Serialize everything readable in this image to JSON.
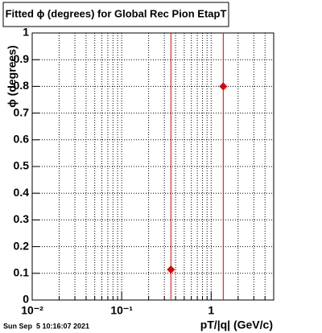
{
  "chart_data": {
    "type": "scatter",
    "title": "Fitted ϕ (degrees) for Global Rec Pion EtapT",
    "x_label": "pT/|q| (GeV/c)",
    "y_label": "ϕ (degrees)",
    "timestamp": "Sun Sep  5 10:16:07 2021",
    "x": [
      0.355,
      1.365
    ],
    "values": [
      0.114,
      0.8
    ],
    "color": "#e00000",
    "xscale": "log",
    "xlim": [
      0.01,
      5
    ],
    "ylim": [
      0,
      1
    ],
    "xticks": [
      {
        "value": 0.01,
        "label": "10⁻²"
      },
      {
        "value": 0.1,
        "label": "10⁻¹"
      },
      1
    ],
    "xminorticks": [
      0.02,
      0.03,
      0.04,
      0.05,
      0.06,
      0.07,
      0.08,
      0.09,
      0.2,
      0.3,
      0.4,
      0.5,
      0.6,
      0.7,
      0.8,
      0.9,
      2,
      3,
      4,
      5
    ],
    "yticks": [
      0,
      0.1,
      0.2,
      0.3,
      0.4,
      0.5,
      0.6,
      0.7,
      0.8,
      0.9,
      1
    ],
    "grid": true
  }
}
